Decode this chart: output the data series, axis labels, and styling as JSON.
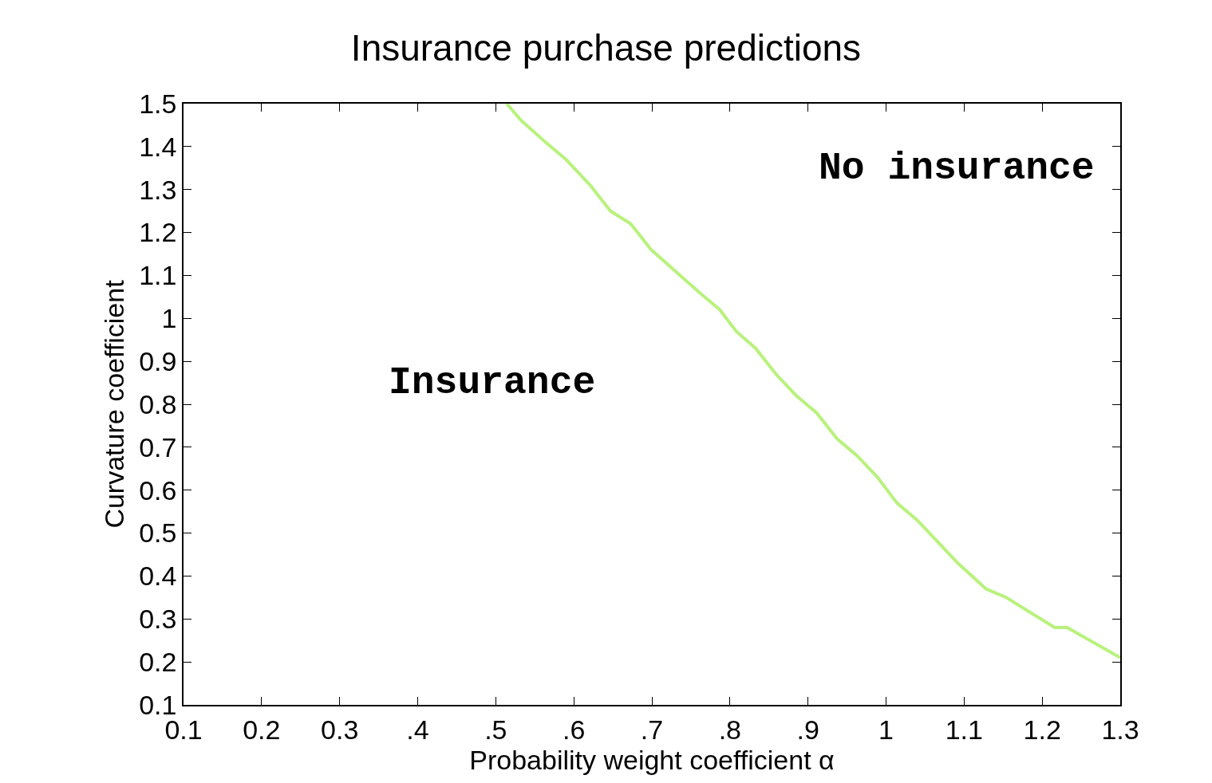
{
  "chart_data": {
    "type": "line",
    "title": "Insurance purchase predictions",
    "xlabel": "Probability weight coefficient α",
    "ylabel": "Curvature coefficient",
    "xlim": [
      0.1,
      1.3
    ],
    "ylim": [
      0.1,
      1.5
    ],
    "xticks": [
      0.1,
      0.2,
      0.3,
      {
        "value": 0.4,
        "label": ".4"
      },
      {
        "value": 0.5,
        "label": ".5"
      },
      {
        "value": 0.6,
        "label": ".6"
      },
      {
        "value": 0.7,
        "label": ".7"
      },
      {
        "value": 0.8,
        "label": ".8"
      },
      {
        "value": 0.9,
        "label": ".9"
      },
      1,
      1.1,
      1.2,
      1.3
    ],
    "yticks": [
      0.1,
      0.2,
      0.3,
      0.4,
      0.5,
      0.6,
      0.7,
      0.8,
      0.9,
      1,
      1.1,
      1.2,
      1.3,
      1.4,
      1.5
    ],
    "marker": "none",
    "line_style": "solid",
    "series": [
      {
        "color": "#b8f27c",
        "x": [
          0.514,
          0.533,
          0.564,
          0.59,
          0.621,
          0.647,
          0.673,
          0.699,
          0.73,
          0.761,
          0.787,
          0.808,
          0.833,
          0.859,
          0.885,
          0.911,
          0.937,
          0.963,
          0.989,
          1.014,
          1.04,
          1.066,
          1.092,
          1.128,
          1.154,
          1.216,
          1.232,
          1.3
        ],
        "values": [
          1.5,
          1.46,
          1.41,
          1.37,
          1.31,
          1.25,
          1.22,
          1.16,
          1.11,
          1.06,
          1.02,
          0.97,
          0.93,
          0.87,
          0.82,
          0.78,
          0.72,
          0.68,
          0.63,
          0.57,
          0.53,
          0.48,
          0.43,
          0.37,
          0.35,
          0.28,
          0.28,
          0.21
        ]
      }
    ],
    "annotations": [
      "No insurance",
      "Insurance"
    ]
  }
}
